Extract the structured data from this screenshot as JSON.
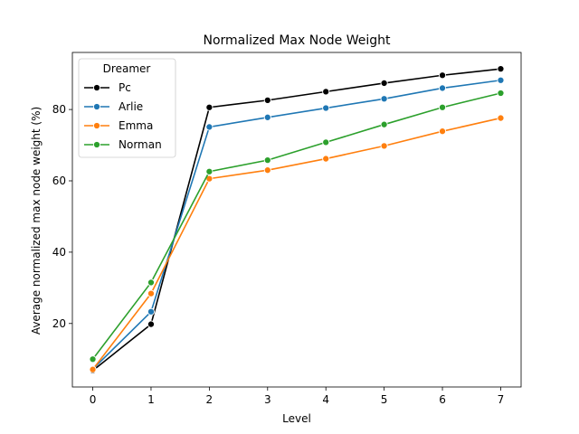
{
  "chart_data": {
    "type": "line",
    "title": "Normalized Max Node Weight",
    "xlabel": "Level",
    "ylabel": "Average normalized max node weight (%)",
    "x": [
      0,
      1,
      2,
      3,
      4,
      5,
      6,
      7
    ],
    "xlim": [
      -0.35,
      7.35
    ],
    "ylim": [
      2.2,
      96.0
    ],
    "xticks": [
      "0",
      "1",
      "2",
      "3",
      "4",
      "5",
      "6",
      "7"
    ],
    "yticks": [
      20,
      40,
      60,
      80
    ],
    "grid": false,
    "legend": {
      "title": "Dreamer",
      "position": "top-left"
    },
    "series": [
      {
        "name": "Pc",
        "color": "#000000",
        "values": [
          6.8,
          19.8,
          80.6,
          82.6,
          85.0,
          87.4,
          89.6,
          91.4
        ]
      },
      {
        "name": "Arlie",
        "color": "#1f77b4",
        "values": [
          7.2,
          23.3,
          75.1,
          77.8,
          80.4,
          83.0,
          86.0,
          88.2
        ]
      },
      {
        "name": "Emma",
        "color": "#ff7f0e",
        "values": [
          7.1,
          28.4,
          60.6,
          63.0,
          66.2,
          69.8,
          73.9,
          77.6
        ]
      },
      {
        "name": "Norman",
        "color": "#2ca02c",
        "values": [
          10.0,
          31.5,
          62.6,
          65.8,
          70.8,
          75.8,
          80.6,
          84.6
        ]
      }
    ]
  }
}
